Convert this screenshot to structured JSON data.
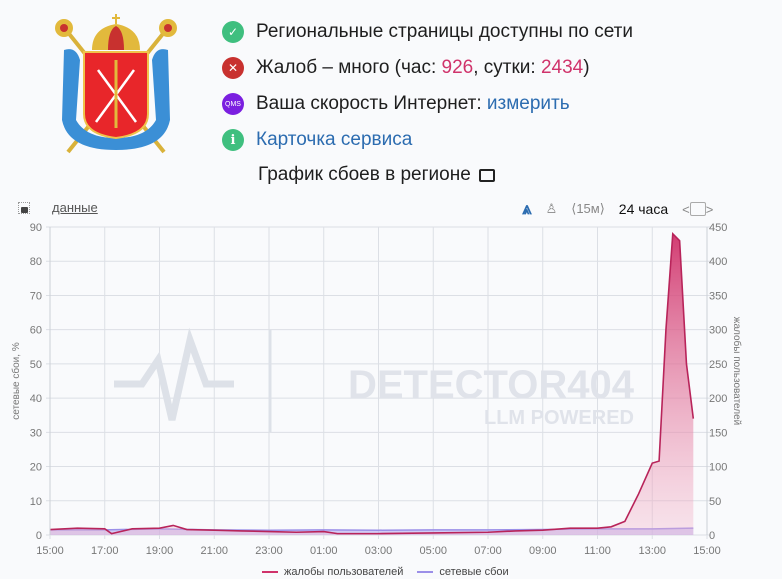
{
  "header": {
    "emblem": "saint-petersburg-coat-of-arms",
    "status": [
      {
        "icon": "check-circle-icon",
        "text": "Региональные страницы доступны по сети"
      },
      {
        "icon": "x-circle-icon",
        "prefix": "Жалоб – много (час: ",
        "hour_count": "926",
        "middle": ", сутки: ",
        "day_count": "2434",
        "suffix": ")"
      },
      {
        "icon": "qms-icon",
        "icon_label": "QMS",
        "text": "Ваша скорость Интернет: ",
        "link": "измерить"
      },
      {
        "icon": "info-icon",
        "icon_label": "i",
        "link": "Карточка сервиса"
      }
    ],
    "chart_title": "График сбоев в регионе"
  },
  "toolbar": {
    "data_link": "данные",
    "interval": "⟨15м⟩",
    "range": "24 часа",
    "prev": "<",
    "next": ">"
  },
  "colors": {
    "complaints": "#d0336b",
    "network": "#9b8fe8",
    "ok": "#3fbf7f",
    "bad": "#c8312f",
    "qms": "#7b1fe0",
    "link": "#2c6cb0"
  },
  "chart_data": {
    "type": "area",
    "title": "График сбоев в регионе",
    "watermark": [
      "DETECTOR404",
      "LLM POWERED"
    ],
    "x": [
      "15:00",
      "17:00",
      "19:00",
      "21:00",
      "23:00",
      "01:00",
      "03:00",
      "05:00",
      "07:00",
      "09:00",
      "11:00",
      "13:00",
      "15:00"
    ],
    "ylabel_left": "сетевые сбои, %",
    "ylim_left": [
      0,
      90
    ],
    "yticks_left": [
      0,
      10,
      20,
      30,
      40,
      50,
      60,
      70,
      80,
      90
    ],
    "ylabel_right": "жалобы пользователей",
    "ylim_right": [
      0,
      450
    ],
    "yticks_right": [
      0,
      50,
      100,
      150,
      200,
      250,
      300,
      350,
      400,
      450
    ],
    "grid": true,
    "legend_position": "bottom",
    "series": [
      {
        "name": "жалобы пользователей",
        "axis": "right",
        "color": "#d0336b",
        "points": [
          [
            "15:00",
            8
          ],
          [
            "16:00",
            10
          ],
          [
            "17:00",
            9
          ],
          [
            "17:15",
            2
          ],
          [
            "18:00",
            9
          ],
          [
            "19:00",
            10
          ],
          [
            "19:30",
            14
          ],
          [
            "20:00",
            8
          ],
          [
            "21:00",
            7
          ],
          [
            "22:00",
            6
          ],
          [
            "23:00",
            5
          ],
          [
            "00:00",
            4
          ],
          [
            "01:00",
            5
          ],
          [
            "01:30",
            2
          ],
          [
            "03:00",
            2
          ],
          [
            "05:00",
            3
          ],
          [
            "07:00",
            4
          ],
          [
            "08:00",
            6
          ],
          [
            "09:00",
            7
          ],
          [
            "10:00",
            10
          ],
          [
            "11:00",
            10
          ],
          [
            "11:30",
            12
          ],
          [
            "12:00",
            20
          ],
          [
            "12:30",
            60
          ],
          [
            "13:00",
            105
          ],
          [
            "13:15",
            108
          ],
          [
            "13:30",
            300
          ],
          [
            "13:45",
            440
          ],
          [
            "14:00",
            430
          ],
          [
            "14:15",
            250
          ],
          [
            "14:30",
            170
          ]
        ]
      },
      {
        "name": "сетевые сбои",
        "axis": "left",
        "color": "#9b8fe8",
        "points": [
          [
            "15:00",
            1.5
          ],
          [
            "17:00",
            1.5
          ],
          [
            "19:00",
            1.8
          ],
          [
            "21:00",
            1.5
          ],
          [
            "23:00",
            1.4
          ],
          [
            "01:00",
            1.5
          ],
          [
            "03:00",
            1.4
          ],
          [
            "05:00",
            1.5
          ],
          [
            "07:00",
            1.5
          ],
          [
            "09:00",
            1.6
          ],
          [
            "11:00",
            1.8
          ],
          [
            "13:00",
            1.8
          ],
          [
            "14:30",
            2
          ]
        ]
      }
    ]
  }
}
